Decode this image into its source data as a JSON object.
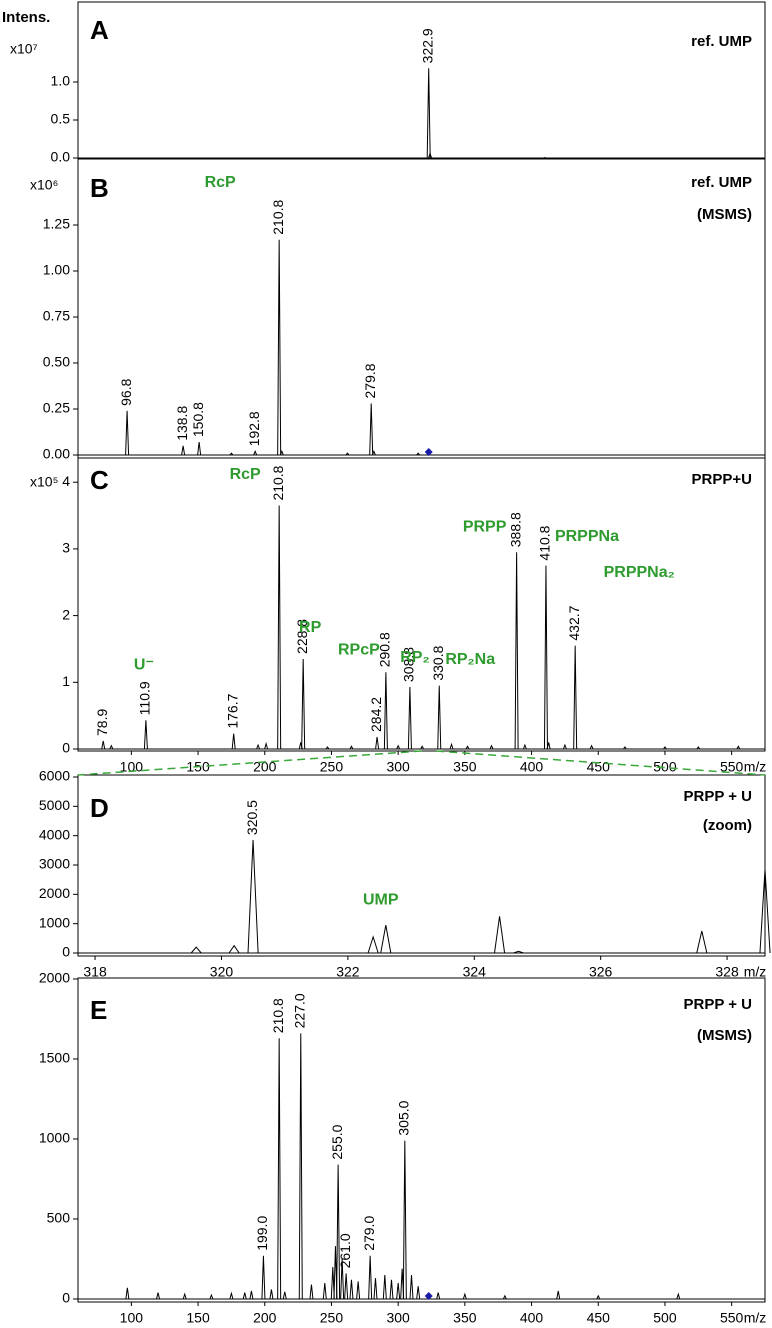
{
  "chart_data": [
    {
      "type": "spectrum",
      "panel": "A",
      "title": [
        "ref. UMP"
      ],
      "y_label": "Intens.",
      "y_multiplier": "x10⁷",
      "color": "#000000",
      "xlim": [
        60,
        575
      ],
      "ylim": [
        0,
        2.0
      ],
      "yticks": [
        {
          "value": 0,
          "label": "0.0"
        },
        {
          "value": 0.5,
          "label": "0.5"
        },
        {
          "value": 1,
          "label": "1.0"
        }
      ],
      "peaks": {
        "x": [
          322.9
        ],
        "values": [
          1.18
        ]
      },
      "minor_peaks": {
        "x": [
          323.9,
          410
        ],
        "values": [
          0.06,
          0.005
        ]
      }
    },
    {
      "type": "spectrum",
      "panel": "B",
      "title": [
        "ref. UMP",
        "(MSMS)"
      ],
      "y_multiplier": "x10⁶",
      "color": "#000000",
      "xlim": [
        60,
        575
      ],
      "ylim": [
        0,
        1.6
      ],
      "yticks": [
        {
          "value": 0,
          "label": "0.00"
        },
        0.25,
        {
          "value": 0.5,
          "label": "0.50"
        },
        {
          "value": 0.75,
          "label": "0.75"
        },
        {
          "value": 1,
          "label": "1.00"
        },
        {
          "value": 1.25,
          "label": "1.25"
        }
      ],
      "peaks": {
        "x": [
          96.8,
          138.8,
          150.8,
          192.8,
          210.8,
          279.8
        ],
        "values": [
          0.24,
          0.05,
          0.07,
          0.02,
          1.17,
          0.28
        ]
      },
      "minor_peaks": {
        "x": [
          175,
          212.8,
          262,
          281.8,
          315
        ],
        "values": [
          0.01,
          0.02,
          0.01,
          0.02,
          0.01
        ]
      },
      "precursor": 322.9,
      "precursor_color": "#1a1aa8",
      "annotations": [
        {
          "text": "RcP",
          "x": 210.8
        }
      ],
      "annotation_color": "#2e9b2e"
    },
    {
      "type": "spectrum",
      "panel": "C",
      "title": [
        "PRPP+U"
      ],
      "y_multiplier": "x10⁵",
      "color": "#000000",
      "xlim": [
        60,
        575
      ],
      "ylim": [
        0,
        4.33
      ],
      "yticks": [
        0,
        1,
        2,
        3,
        4
      ],
      "xticks": [
        100,
        150,
        200,
        250,
        300,
        350,
        400,
        450,
        500,
        550
      ],
      "x_label": "m/z",
      "peaks": {
        "x": [
          78.9,
          110.9,
          176.7,
          210.8,
          228.8,
          284.2,
          290.8,
          308.8,
          330.8,
          388.8,
          410.8,
          432.7
        ],
        "values": [
          0.12,
          0.43,
          0.23,
          3.65,
          1.35,
          0.18,
          1.15,
          0.93,
          0.95,
          2.95,
          2.75,
          1.55
        ]
      },
      "minor_peaks": {
        "x": [
          85,
          195,
          201,
          227,
          247,
          265,
          300,
          318,
          340,
          352,
          370,
          395,
          412.8,
          425,
          445,
          470,
          500,
          525,
          555
        ],
        "values": [
          0.05,
          0.06,
          0.08,
          0.1,
          0.03,
          0.04,
          0.05,
          0.04,
          0.07,
          0.04,
          0.05,
          0.06,
          0.1,
          0.06,
          0.05,
          0.03,
          0.03,
          0.03,
          0.04
        ]
      },
      "annotations": [
        {
          "text": "U⁻",
          "x": 110.9
        },
        {
          "text": "RcP",
          "x": 210.8
        },
        {
          "text": "RP",
          "x": 228.8
        },
        {
          "text": "RPcP",
          "x": 290.8
        },
        {
          "text": "RP₂",
          "x": 308.8
        },
        {
          "text": "RP₂Na",
          "x": 330.8
        },
        {
          "text": "PRPP",
          "x": 388.8
        },
        {
          "text": "PRPPNa",
          "x": 410.8
        },
        {
          "text": "PRPPNa₂",
          "x": 432.7
        }
      ],
      "annotation_color": "#2e9b2e"
    },
    {
      "type": "spectrum",
      "panel": "D",
      "title": [
        "PRPP + U",
        "(zoom)"
      ],
      "color": "#000000",
      "xlim": [
        317.73,
        328.6
      ],
      "ylim": [
        0,
        6000
      ],
      "yticks": [
        0,
        1000,
        2000,
        3000,
        4000,
        5000,
        6000
      ],
      "xticks": [
        318,
        320,
        322,
        324,
        326,
        328
      ],
      "x_label": "m/z",
      "peaks": {
        "x": [
          320.5
        ],
        "values": [
          3850
        ]
      },
      "minor_peaks": {
        "x": [
          319.6,
          320.2,
          322.4,
          322.6,
          324.4,
          324.7,
          327.6,
          328.6
        ],
        "values": [
          200,
          250,
          550,
          950,
          1250,
          60,
          750,
          2850
        ]
      },
      "annotations": [
        {
          "text": "UMP",
          "x": 322.6
        }
      ],
      "annotation_color": "#2e9b2e",
      "zoom_color": "#3aa83a"
    },
    {
      "type": "spectrum",
      "panel": "E",
      "title": [
        "PRPP + U",
        "(MSMS)"
      ],
      "color": "#000000",
      "xlim": [
        60,
        575
      ],
      "ylim": [
        0,
        2000
      ],
      "yticks": [
        0,
        500,
        1000,
        1500,
        2000
      ],
      "xticks": [
        100,
        150,
        200,
        250,
        300,
        350,
        400,
        450,
        500,
        550
      ],
      "x_label": "m/z",
      "peaks": {
        "x": [
          199.0,
          210.8,
          227.0,
          255.0,
          261.0,
          279.0,
          305.0
        ],
        "x_labels": [
          "199.0",
          "210.8",
          "227.0",
          "255.0",
          "261.0",
          "279.0",
          "305.0"
        ],
        "values": [
          270,
          1630,
          1660,
          840,
          160,
          270,
          990
        ]
      },
      "minor_peaks": {
        "x": [
          97,
          120,
          140,
          160,
          175,
          185,
          190,
          205,
          215,
          235,
          245,
          251,
          253,
          258,
          265,
          270,
          283,
          290,
          295,
          300,
          303,
          310,
          315,
          330,
          350,
          380,
          420,
          450,
          510
        ],
        "values": [
          70,
          40,
          30,
          25,
          35,
          40,
          50,
          60,
          45,
          90,
          100,
          200,
          330,
          250,
          120,
          110,
          130,
          150,
          120,
          100,
          190,
          150,
          80,
          40,
          30,
          20,
          50,
          20,
          30
        ]
      },
      "precursor": 322.9,
      "precursor_color": "#1a1aa8"
    }
  ]
}
